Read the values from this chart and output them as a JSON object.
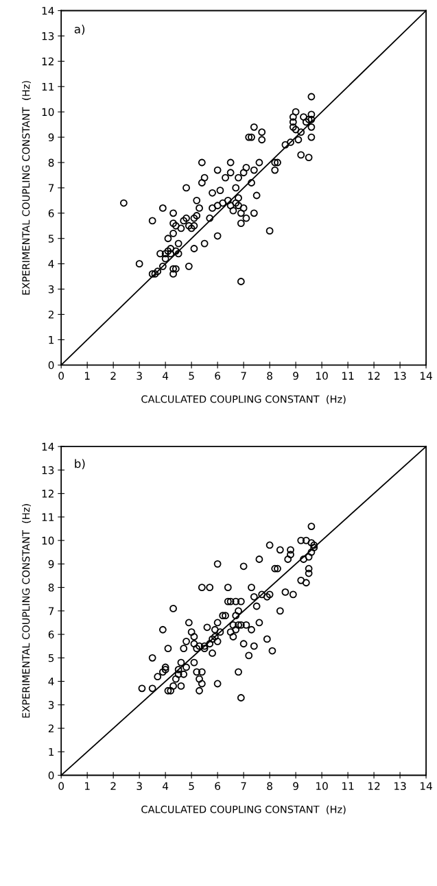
{
  "chart_data": [
    {
      "type": "scatter",
      "xlabel": "CALCULATED COUPLING CONSTANT  (Hz)",
      "ylabel": "EXPERIMENTAL COUPLING CONSTANT  (Hz)",
      "annotations": [
        "a)"
      ],
      "xlim": [
        0,
        14
      ],
      "ylim": [
        0,
        14
      ],
      "xticks": [
        0,
        1,
        2,
        3,
        4,
        5,
        6,
        7,
        8,
        9,
        10,
        11,
        12,
        13,
        14
      ],
      "yticks": [
        0,
        1,
        2,
        3,
        4,
        5,
        6,
        7,
        8,
        9,
        10,
        11,
        12,
        13,
        14
      ],
      "grid": false,
      "legend": false,
      "series": [
        {
          "color": "#000000",
          "marker": "circle",
          "x": [
            2.4,
            3.0,
            3.5,
            3.5,
            3.6,
            3.7,
            3.8,
            3.9,
            3.9,
            4.0,
            4.0,
            4.1,
            4.1,
            4.2,
            4.2,
            4.3,
            4.3,
            4.3,
            4.3,
            4.3,
            4.4,
            4.4,
            4.4,
            4.5,
            4.5,
            4.6,
            4.7,
            4.8,
            4.8,
            4.9,
            4.9,
            5.0,
            5.1,
            5.1,
            5.1,
            5.2,
            5.2,
            5.3,
            5.4,
            5.4,
            5.5,
            5.5,
            5.7,
            5.8,
            5.8,
            6.0,
            6.0,
            6.0,
            6.1,
            6.2,
            6.3,
            6.4,
            6.5,
            6.5,
            6.5,
            6.6,
            6.7,
            6.7,
            6.8,
            6.8,
            6.8,
            6.9,
            6.9,
            6.9,
            7.0,
            7.0,
            7.1,
            7.1,
            7.3,
            7.3,
            7.4,
            7.4,
            7.4,
            7.5,
            7.6,
            7.7,
            7.7,
            8.0,
            8.2,
            8.2,
            8.3,
            8.8,
            8.9,
            8.9,
            8.9,
            9.0,
            9.0,
            9.1,
            9.2,
            9.2,
            9.3,
            9.4,
            9.5,
            9.6,
            9.6,
            9.6,
            9.6,
            9.6,
            9.5,
            8.6,
            7.2
          ],
          "values": [
            6.4,
            4.0,
            5.7,
            3.6,
            3.6,
            3.7,
            4.4,
            6.2,
            3.9,
            4.4,
            4.2,
            5.0,
            4.5,
            4.6,
            4.4,
            6.0,
            5.6,
            5.2,
            3.8,
            3.6,
            4.5,
            3.8,
            5.5,
            4.4,
            4.8,
            5.4,
            5.7,
            5.8,
            7.0,
            5.5,
            3.9,
            5.4,
            5.8,
            5.5,
            4.6,
            6.5,
            5.9,
            6.2,
            8.0,
            7.2,
            7.4,
            4.8,
            5.8,
            6.2,
            6.8,
            7.7,
            6.3,
            5.1,
            6.9,
            6.4,
            7.4,
            6.5,
            8.0,
            7.6,
            6.3,
            6.1,
            6.4,
            7.0,
            6.3,
            7.4,
            6.6,
            6.0,
            5.6,
            3.3,
            7.6,
            6.2,
            7.8,
            5.8,
            9.0,
            7.2,
            9.4,
            7.7,
            6.0,
            6.7,
            8.0,
            9.2,
            8.9,
            5.3,
            7.7,
            8.0,
            8.0,
            8.8,
            9.8,
            9.6,
            9.4,
            9.3,
            10.0,
            8.9,
            9.2,
            8.3,
            9.8,
            9.6,
            9.7,
            10.6,
            9.9,
            9.7,
            9.4,
            9.0,
            8.2,
            8.7,
            9.0
          ]
        },
        {
          "type": "line",
          "color": "#000000",
          "x": [
            0,
            14
          ],
          "values": [
            0,
            14
          ]
        }
      ]
    },
    {
      "type": "scatter",
      "xlabel": "CALCULATED COUPLING CONSTANT  (Hz)",
      "ylabel": "EXPERIMENTAL COUPLING CONSTANT  (Hz)",
      "annotations": [
        "b)"
      ],
      "xlim": [
        0,
        14
      ],
      "ylim": [
        0,
        14
      ],
      "xticks": [
        0,
        1,
        2,
        3,
        4,
        5,
        6,
        7,
        8,
        9,
        10,
        11,
        12,
        13,
        14
      ],
      "yticks": [
        0,
        1,
        2,
        3,
        4,
        5,
        6,
        7,
        8,
        9,
        10,
        11,
        12,
        13,
        14
      ],
      "grid": false,
      "legend": false,
      "series": [
        {
          "color": "#000000",
          "marker": "circle",
          "x": [
            3.1,
            3.5,
            3.5,
            3.7,
            3.9,
            3.9,
            4.0,
            4.0,
            4.1,
            4.1,
            4.2,
            4.3,
            4.3,
            4.4,
            4.5,
            4.5,
            4.6,
            4.6,
            4.7,
            4.7,
            4.8,
            4.8,
            4.9,
            5.0,
            5.1,
            5.1,
            5.1,
            5.2,
            5.2,
            5.3,
            5.3,
            5.3,
            5.4,
            5.4,
            5.4,
            5.5,
            5.5,
            5.6,
            5.7,
            5.7,
            5.8,
            5.8,
            5.9,
            5.9,
            6.0,
            6.0,
            6.0,
            6.0,
            6.1,
            6.2,
            6.3,
            6.4,
            6.4,
            6.5,
            6.5,
            6.6,
            6.6,
            6.7,
            6.7,
            6.7,
            6.8,
            6.8,
            6.8,
            6.9,
            6.9,
            6.9,
            7.0,
            7.0,
            7.1,
            7.2,
            7.3,
            7.3,
            7.4,
            7.4,
            7.5,
            7.6,
            7.6,
            7.7,
            7.9,
            7.9,
            8.0,
            8.0,
            8.1,
            8.2,
            8.3,
            8.4,
            8.4,
            8.6,
            8.7,
            8.8,
            8.8,
            8.9,
            9.2,
            9.2,
            9.3,
            9.4,
            9.4,
            9.5,
            9.5,
            9.5,
            9.6,
            9.6,
            9.7,
            9.7,
            9.6
          ],
          "values": [
            3.7,
            3.7,
            5.0,
            4.2,
            4.4,
            6.2,
            4.6,
            4.5,
            5.4,
            3.6,
            3.6,
            7.1,
            3.8,
            4.1,
            4.3,
            4.5,
            4.8,
            3.8,
            4.3,
            5.4,
            4.6,
            5.7,
            6.5,
            6.1,
            5.6,
            5.9,
            4.8,
            5.4,
            4.4,
            4.1,
            3.6,
            5.5,
            8.0,
            4.4,
            3.9,
            5.5,
            5.4,
            6.3,
            8.0,
            5.6,
            5.2,
            5.8,
            6.2,
            5.9,
            6.5,
            5.7,
            9.0,
            3.9,
            6.1,
            6.8,
            6.8,
            7.4,
            8.0,
            6.1,
            7.4,
            5.9,
            6.4,
            7.4,
            6.8,
            6.2,
            6.4,
            7.0,
            4.4,
            7.4,
            6.4,
            3.3,
            8.9,
            5.6,
            6.4,
            5.1,
            6.2,
            8.0,
            7.6,
            5.5,
            7.2,
            6.5,
            9.2,
            7.7,
            7.6,
            5.8,
            9.8,
            7.7,
            5.3,
            8.8,
            8.8,
            9.6,
            7.0,
            7.8,
            9.2,
            9.6,
            9.4,
            7.7,
            10.0,
            8.3,
            9.2,
            8.2,
            10.0,
            9.3,
            8.8,
            8.6,
            10.6,
            9.5,
            9.7,
            9.8,
            9.9
          ]
        },
        {
          "type": "line",
          "color": "#000000",
          "x": [
            0,
            14
          ],
          "values": [
            0,
            14
          ]
        }
      ]
    }
  ]
}
